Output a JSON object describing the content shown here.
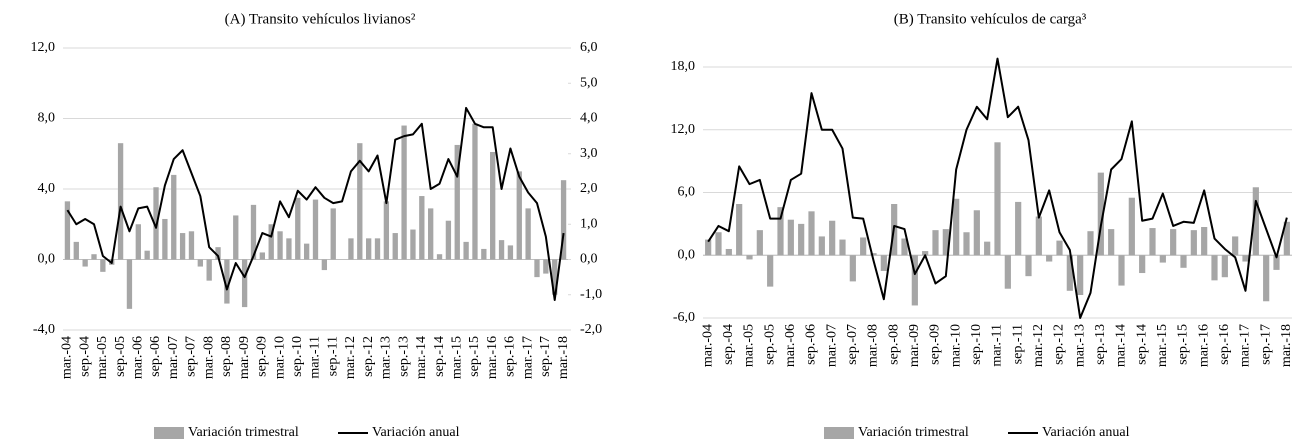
{
  "chart_data": [
    {
      "type": "combo",
      "title": "(A) Transito vehículos livianos²",
      "categories": [
        "mar.-04",
        null,
        "sep.-04",
        null,
        "mar.-05",
        null,
        "sep.-05",
        null,
        "mar.-06",
        null,
        "sep.-06",
        null,
        "mar.-07",
        null,
        "sep.-07",
        null,
        "mar.-08",
        null,
        "sep.-08",
        null,
        "mar.-09",
        null,
        "sep.-09",
        null,
        "mar.-10",
        null,
        "sep.-10",
        null,
        "mar.-11",
        null,
        "sep.-11",
        null,
        "mar.-12",
        null,
        "sep.-12",
        null,
        "mar.-13",
        null,
        "sep.-13",
        null,
        "mar.-14",
        null,
        "sep.-14",
        null,
        "mar.-15",
        null,
        "sep.-15",
        null,
        "mar.-16",
        null,
        "sep.-16",
        null,
        "mar.-17",
        null,
        "sep.-17",
        null,
        "mar.-18"
      ],
      "series": [
        {
          "name": "Variación trimestral",
          "type": "bar",
          "color": "#a6a6a6",
          "axis": "y2",
          "values": [
            1.65,
            0.5,
            -0.2,
            0.15,
            -0.35,
            -0.15,
            3.3,
            -1.4,
            1.0,
            0.25,
            2.05,
            1.15,
            2.4,
            0.75,
            0.8,
            -0.2,
            -0.6,
            0.35,
            -1.25,
            1.25,
            -1.35,
            1.55,
            0.2,
            1.0,
            0.8,
            0.6,
            1.75,
            0.45,
            1.7,
            -0.3,
            1.45,
            0.0,
            0.6,
            3.3,
            0.6,
            0.6,
            1.65,
            0.75,
            3.8,
            0.85,
            1.8,
            1.45,
            0.15,
            1.1,
            3.25,
            0.5,
            3.85,
            0.3,
            3.05,
            0.55,
            0.4,
            2.5,
            1.45,
            -0.5,
            -0.4,
            -1.0,
            2.25
          ]
        },
        {
          "name": "Variación anual",
          "type": "line",
          "color": "#000000",
          "values": [
            2.8,
            2.0,
            2.3,
            2.0,
            0.2,
            -0.2,
            3.0,
            1.6,
            2.9,
            3.0,
            1.8,
            4.2,
            5.7,
            6.2,
            4.9,
            3.6,
            0.7,
            0.2,
            -1.7,
            -0.2,
            -1.0,
            0.2,
            1.5,
            1.3,
            3.3,
            2.4,
            3.9,
            3.4,
            4.1,
            3.5,
            3.2,
            3.3,
            5.0,
            5.6,
            5.0,
            5.9,
            3.2,
            6.8,
            7.0,
            7.1,
            7.7,
            4.0,
            4.3,
            5.7,
            4.7,
            8.6,
            7.7,
            7.5,
            7.5,
            4.0,
            6.3,
            4.7,
            3.8,
            3.2,
            1.3,
            -2.3,
            1.5
          ]
        }
      ],
      "ylim": [
        -4,
        12
      ],
      "yticks": [
        {
          "value": -4,
          "label": "-4,0"
        },
        {
          "value": 0,
          "label": "0,0"
        },
        {
          "value": 4,
          "label": "4,0"
        },
        {
          "value": 8,
          "label": "8,0"
        },
        {
          "value": 12,
          "label": "12,0"
        }
      ],
      "y2lim": [
        -2,
        6
      ],
      "y2ticks": [
        {
          "value": -2,
          "label": "-2,0"
        },
        {
          "value": -1,
          "label": "-1,0"
        },
        {
          "value": 0,
          "label": "0,0"
        },
        {
          "value": 1,
          "label": "1,0"
        },
        {
          "value": 2,
          "label": "2,0"
        },
        {
          "value": 3,
          "label": "3,0"
        },
        {
          "value": 4,
          "label": "4,0"
        },
        {
          "value": 5,
          "label": "5,0"
        },
        {
          "value": 6,
          "label": "6,0"
        }
      ],
      "grid": true,
      "legend": "bottom"
    },
    {
      "type": "combo",
      "title": "(B) Transito vehículos de carga³",
      "categories": [
        "mar.-04",
        null,
        "sep.-04",
        null,
        "mar.-05",
        null,
        "sep.-05",
        null,
        "mar.-06",
        null,
        "sep.-06",
        null,
        "mar.-07",
        null,
        "sep.-07",
        null,
        "mar.-08",
        null,
        "sep.-08",
        null,
        "mar.-09",
        null,
        "sep.-09",
        null,
        "mar.-10",
        null,
        "sep.-10",
        null,
        "mar.-11",
        null,
        "sep.-11",
        null,
        "mar.-12",
        null,
        "sep.-12",
        null,
        "mar.-13",
        null,
        "sep.-13",
        null,
        "mar.-14",
        null,
        "sep.-14",
        null,
        "mar.-15",
        null,
        "sep.-15",
        null,
        "mar.-16",
        null,
        "sep.-16",
        null,
        "mar.-17",
        null,
        "sep.-17",
        null,
        "mar.-18"
      ],
      "series": [
        {
          "name": "Variación trimestral",
          "type": "bar",
          "color": "#a6a6a6",
          "values": [
            1.5,
            2.2,
            0.6,
            4.9,
            -0.4,
            2.4,
            -3.0,
            4.6,
            3.4,
            3.0,
            4.2,
            1.8,
            3.3,
            1.5,
            -2.5,
            1.7,
            0.2,
            -1.5,
            4.9,
            1.6,
            -4.8,
            0.4,
            2.4,
            2.5,
            5.4,
            2.2,
            4.3,
            1.3,
            10.8,
            -3.2,
            5.1,
            -2.0,
            3.7,
            -0.6,
            1.4,
            -3.4,
            -3.8,
            2.3,
            7.9,
            2.5,
            -2.9,
            5.5,
            -1.7,
            2.6,
            -0.7,
            2.5,
            -1.2,
            2.4,
            2.7,
            -2.4,
            -2.1,
            1.8,
            -0.6,
            6.5,
            -4.4,
            -1.4,
            3.2
          ]
        },
        {
          "name": "Variación anual",
          "type": "line",
          "color": "#000000",
          "values": [
            1.3,
            2.8,
            2.3,
            8.5,
            6.8,
            7.2,
            3.5,
            3.5,
            7.2,
            7.8,
            15.5,
            12.0,
            12.0,
            10.2,
            3.6,
            3.5,
            -0.5,
            -4.2,
            2.8,
            2.5,
            -1.8,
            0.0,
            -2.7,
            -2.0,
            8.2,
            12.0,
            14.2,
            13.0,
            18.8,
            13.2,
            14.2,
            11.0,
            3.6,
            6.2,
            2.2,
            0.5,
            -6.0,
            -3.6,
            2.8,
            8.2,
            9.2,
            12.8,
            3.3,
            3.5,
            5.9,
            2.8,
            3.2,
            3.1,
            6.2,
            1.6,
            0.6,
            -0.2,
            -3.4,
            5.2,
            2.5,
            -0.2,
            3.6
          ]
        }
      ],
      "ylim": [
        -6,
        18
      ],
      "yticks": [
        {
          "value": -6,
          "label": "-6,0"
        },
        {
          "value": 0,
          "label": "0,0"
        },
        {
          "value": 6,
          "label": "6,0"
        },
        {
          "value": 12,
          "label": "12,0"
        },
        {
          "value": 18,
          "label": "18,0"
        }
      ],
      "grid": true,
      "legend": "bottom"
    }
  ]
}
